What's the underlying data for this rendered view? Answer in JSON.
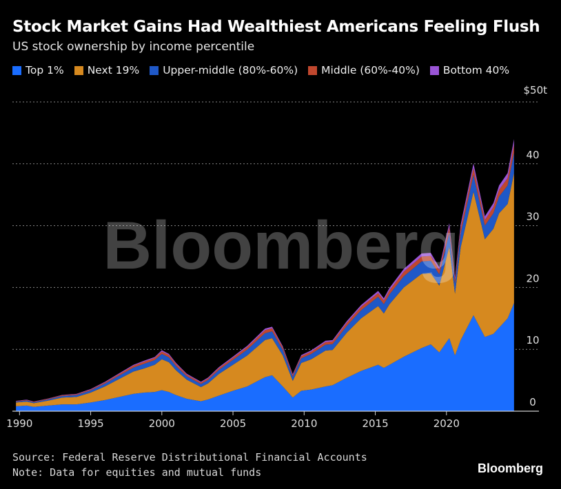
{
  "chart_data": {
    "type": "area",
    "title": "Stock Market Gains Had Wealthiest Americans Feeling Flush",
    "subtitle": "US stock ownership by income percentile",
    "xlabel": "",
    "ylabel": "",
    "y_unit_label": "$50t",
    "ylim": [
      0,
      50
    ],
    "y_ticks": [
      0,
      10,
      20,
      30,
      40,
      50
    ],
    "y_tick_labels": [
      "0",
      "10",
      "20",
      "30",
      "40"
    ],
    "x_ticks": [
      1990,
      1995,
      2000,
      2005,
      2010,
      2015,
      2020
    ],
    "xlim": [
      1989.5,
      2026.5
    ],
    "stacked": true,
    "x": [
      1989.75,
      1990.5,
      1991,
      1992,
      1993,
      1994,
      1995,
      1996,
      1997,
      1998,
      1998.75,
      1999.5,
      2000,
      2000.5,
      2001,
      2001.75,
      2002.75,
      2003.25,
      2004,
      2005,
      2006,
      2007.25,
      2007.75,
      2008.5,
      2009.2,
      2009.8,
      2010.5,
      2011.5,
      2012,
      2013,
      2014,
      2015.2,
      2015.6,
      2016,
      2017,
      2018.25,
      2018.9,
      2019.5,
      2020.2,
      2020.6,
      2021,
      2021.9,
      2022.7,
      2023.3,
      2023.7,
      2024.3,
      2024.75
    ],
    "series": [
      {
        "name": "Top 1%",
        "color": "#1a6dff",
        "values": [
          0.8,
          0.9,
          0.7,
          0.9,
          1.1,
          1.1,
          1.4,
          1.8,
          2.3,
          2.8,
          3.0,
          3.1,
          3.4,
          3.1,
          2.6,
          2.0,
          1.6,
          1.9,
          2.5,
          3.3,
          4.0,
          5.5,
          5.8,
          4.0,
          2.2,
          3.3,
          3.5,
          4.0,
          4.2,
          5.4,
          6.5,
          7.5,
          7.0,
          7.5,
          8.8,
          10.2,
          10.8,
          9.5,
          11.8,
          9.0,
          11.5,
          15.5,
          12.0,
          12.5,
          13.5,
          15.0,
          17.5
        ]
      },
      {
        "name": "Next 19%",
        "color": "#d6891f",
        "values": [
          0.6,
          0.65,
          0.6,
          0.8,
          1.1,
          1.2,
          1.6,
          2.2,
          2.9,
          3.6,
          3.9,
          4.4,
          5.0,
          4.8,
          4.0,
          3.1,
          2.3,
          2.6,
          3.5,
          4.2,
          5.0,
          6.0,
          6.0,
          5.0,
          2.7,
          4.5,
          4.9,
          5.8,
          5.7,
          7.3,
          8.5,
          9.5,
          8.8,
          9.8,
          11.2,
          12.0,
          11.5,
          10.8,
          14.8,
          10.0,
          15.0,
          20.0,
          15.8,
          17.0,
          18.5,
          18.5,
          21.0
        ]
      },
      {
        "name": "Upper-middle (80%-60%)",
        "color": "#1f58c7",
        "values": [
          0.15,
          0.17,
          0.15,
          0.2,
          0.25,
          0.3,
          0.35,
          0.45,
          0.55,
          0.65,
          0.75,
          0.75,
          0.85,
          0.8,
          0.7,
          0.55,
          0.5,
          0.55,
          0.65,
          0.8,
          0.95,
          1.1,
          1.1,
          0.9,
          0.65,
          0.75,
          0.85,
          0.95,
          0.95,
          1.1,
          1.3,
          1.5,
          1.5,
          1.6,
          1.8,
          2.0,
          2.0,
          1.8,
          2.3,
          1.6,
          2.2,
          2.7,
          2.2,
          2.5,
          2.7,
          3.0,
          3.3
        ]
      },
      {
        "name": "Middle (60%-40%)",
        "color": "#c0472e",
        "values": [
          0.08,
          0.09,
          0.08,
          0.1,
          0.12,
          0.13,
          0.15,
          0.2,
          0.25,
          0.3,
          0.35,
          0.35,
          0.4,
          0.38,
          0.33,
          0.27,
          0.24,
          0.26,
          0.3,
          0.35,
          0.42,
          0.5,
          0.5,
          0.4,
          0.3,
          0.35,
          0.38,
          0.42,
          0.42,
          0.5,
          0.55,
          0.6,
          0.6,
          0.65,
          0.75,
          0.8,
          0.8,
          0.7,
          0.9,
          0.65,
          0.9,
          1.1,
          0.9,
          1.0,
          1.1,
          1.2,
          1.3
        ]
      },
      {
        "name": "Bottom 40%",
        "color": "#9a55d6",
        "values": [
          0.04,
          0.05,
          0.04,
          0.05,
          0.06,
          0.07,
          0.08,
          0.1,
          0.12,
          0.14,
          0.16,
          0.16,
          0.2,
          0.18,
          0.16,
          0.13,
          0.12,
          0.13,
          0.15,
          0.18,
          0.2,
          0.25,
          0.25,
          0.2,
          0.15,
          0.18,
          0.2,
          0.22,
          0.22,
          0.26,
          0.3,
          0.35,
          0.35,
          0.38,
          0.45,
          0.5,
          0.5,
          0.45,
          0.6,
          0.45,
          0.6,
          0.75,
          0.6,
          0.65,
          0.7,
          0.8,
          0.9
        ]
      }
    ]
  },
  "watermark": "Bloomberg",
  "footer": {
    "source": "Source: Federal Reserve Distributional Financial Accounts",
    "note": "Note: Data for equities and mutual funds",
    "brand": "Bloomberg"
  }
}
